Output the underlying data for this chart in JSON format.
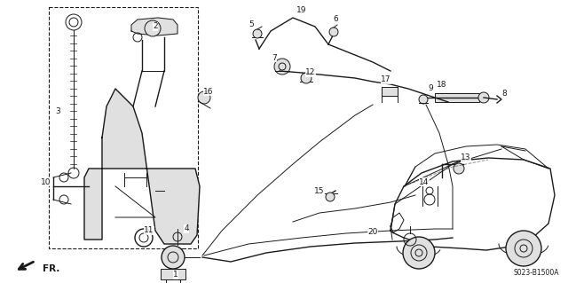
{
  "background_color": "#ffffff",
  "diagram_code": "S023-B1500A",
  "fig_width": 6.4,
  "fig_height": 3.19,
  "dpi": 100,
  "line_color": "#1a1a1a",
  "label_fontsize": 6.5,
  "font_color": "#1a1a1a",
  "gray_fill": "#cccccc",
  "light_gray": "#e0e0e0"
}
